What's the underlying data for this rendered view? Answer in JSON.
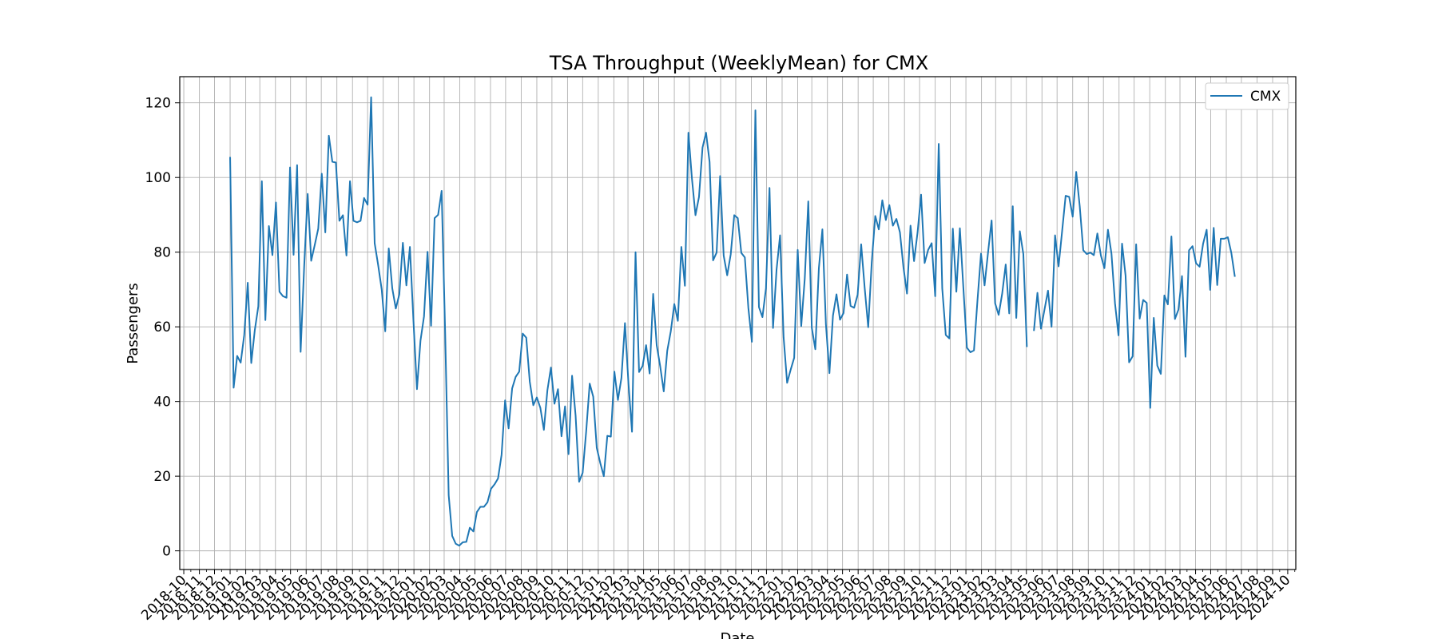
{
  "chart_data": {
    "type": "line",
    "title": "TSA Throughput (WeeklyMean) for CMX",
    "xlabel": "Date",
    "ylabel": "Passengers",
    "ylim": [
      -5,
      127
    ],
    "yticks": [
      0,
      20,
      40,
      60,
      80,
      100,
      120
    ],
    "xlim": [
      "2018-09-23",
      "2024-10-17"
    ],
    "xtick_labels": [
      "2018-10",
      "2018-11",
      "2018-12",
      "2019-01",
      "2019-02",
      "2019-03",
      "2019-04",
      "2019-05",
      "2019-06",
      "2019-07",
      "2019-08",
      "2019-09",
      "2019-10",
      "2019-11",
      "2019-12",
      "2020-01",
      "2020-02",
      "2020-03",
      "2020-04",
      "2020-05",
      "2020-06",
      "2020-07",
      "2020-08",
      "2020-09",
      "2020-10",
      "2020-11",
      "2020-12",
      "2021-01",
      "2021-02",
      "2021-03",
      "2021-04",
      "2021-05",
      "2021-06",
      "2021-07",
      "2021-08",
      "2021-09",
      "2021-10",
      "2021-11",
      "2021-12",
      "2022-01",
      "2022-02",
      "2022-03",
      "2022-04",
      "2022-05",
      "2022-06",
      "2022-07",
      "2022-08",
      "2022-09",
      "2022-10",
      "2022-11",
      "2022-12",
      "2023-01",
      "2023-02",
      "2023-03",
      "2023-04",
      "2023-05",
      "2023-06",
      "2023-07",
      "2023-08",
      "2023-09",
      "2023-10",
      "2023-11",
      "2023-12",
      "2024-01",
      "2024-02",
      "2024-03",
      "2024-04",
      "2024-05",
      "2024-06",
      "2024-07",
      "2024-08",
      "2024-09",
      "2024-10"
    ],
    "grid": true,
    "legend_position": "top-right",
    "color": "#1f77b4",
    "series": [
      {
        "name": "CMX",
        "start": "2019-01-01",
        "freq": "weekly",
        "values": [
          105.5,
          43.7,
          52.2,
          50.4,
          57.8,
          71.8,
          50.3,
          59.1,
          65.5,
          99.0,
          61.8,
          87.0,
          79.2,
          93.3,
          69.4,
          68.2,
          67.8,
          102.7,
          79.3,
          103.3,
          53.3,
          76.0,
          95.6,
          77.7,
          81.9,
          86.3,
          101.0,
          85.3,
          111.2,
          104.2,
          104.0,
          88.4,
          89.9,
          79.1,
          99.0,
          88.4,
          88.0,
          88.4,
          94.5,
          92.7,
          121.5,
          82.4,
          76.5,
          70.0,
          58.8,
          81.0,
          70.3,
          64.9,
          68.7,
          82.5,
          71.1,
          81.4,
          61.7,
          43.3,
          56.3,
          62.8,
          80.1,
          60.3,
          89.1,
          90.0,
          96.4,
          58.3,
          14.9,
          4.0,
          1.9,
          1.4,
          2.3,
          2.4,
          6.2,
          5.2,
          10.4,
          11.8,
          11.8,
          13.0,
          16.6,
          17.8,
          19.4,
          25.7,
          40.3,
          32.8,
          43.5,
          46.6,
          48.0,
          58.2,
          57.1,
          45.3,
          39.0,
          41.1,
          38.3,
          32.4,
          43.0,
          49.1,
          39.4,
          43.3,
          30.7,
          38.7,
          25.9,
          46.9,
          36.2,
          18.5,
          20.9,
          32.0,
          44.8,
          41.3,
          27.6,
          23.5,
          20.0,
          30.8,
          30.6,
          48.0,
          40.4,
          46.3,
          61.0,
          44.7,
          31.9,
          80.0,
          47.9,
          49.5,
          55.1,
          47.5,
          68.8,
          55.1,
          49.4,
          42.7,
          53.6,
          58.8,
          66.1,
          61.6,
          81.4,
          71.0,
          112.0,
          99.7,
          89.9,
          94.8,
          108.0,
          112.0,
          104.2,
          77.8,
          79.9,
          100.4,
          79.1,
          73.8,
          79.4,
          89.9,
          89.1,
          79.8,
          78.6,
          65.1,
          56.0,
          118.0,
          65.3,
          62.6,
          70.3,
          97.2,
          59.7,
          75.3,
          84.5,
          57.2,
          45.0,
          48.5,
          51.7,
          80.6,
          60.2,
          72.9,
          93.6,
          59.7,
          54.0,
          75.7,
          86.1,
          60.7,
          47.6,
          63.0,
          68.7,
          61.9,
          63.7,
          74.0,
          65.6,
          65.1,
          68.6,
          82.1,
          70.4,
          59.9,
          77.3,
          89.7,
          86.1,
          93.9,
          88.6,
          92.6,
          87.1,
          88.9,
          85.3,
          75.9,
          68.9,
          87.1,
          77.6,
          85.3,
          95.4,
          77.1,
          80.6,
          82.4,
          68.2,
          109.0,
          70.3,
          57.8,
          56.9,
          86.3,
          69.4,
          86.4,
          70.3,
          54.4,
          53.2,
          53.7,
          67.2,
          79.6,
          71.1,
          80.0,
          88.5,
          66.3,
          63.2,
          68.9,
          76.7,
          63.6,
          92.3,
          62.4,
          85.6,
          79.5,
          54.6,
          null,
          58.9,
          69.1,
          59.5,
          64.6,
          69.7,
          60.0,
          84.5,
          76.2,
          85.6,
          95.1,
          94.8,
          89.5,
          101.5,
          92.3,
          80.5,
          79.5,
          79.9,
          79.2,
          85.0,
          79.1,
          75.7,
          86.0,
          79.6,
          66.3,
          57.7,
          82.3,
          73.7,
          50.5,
          52.1,
          82.1,
          62.2,
          67.2,
          66.4,
          38.3,
          62.4,
          49.6,
          47.4,
          68.4,
          66.0,
          84.2,
          62.1,
          64.6,
          73.6,
          52.0,
          80.5,
          81.6,
          77.0,
          76.1,
          82.3,
          86.0,
          69.9,
          86.5,
          71.2,
          83.6,
          83.6,
          84.0,
          79.8,
          73.4
        ]
      }
    ]
  }
}
